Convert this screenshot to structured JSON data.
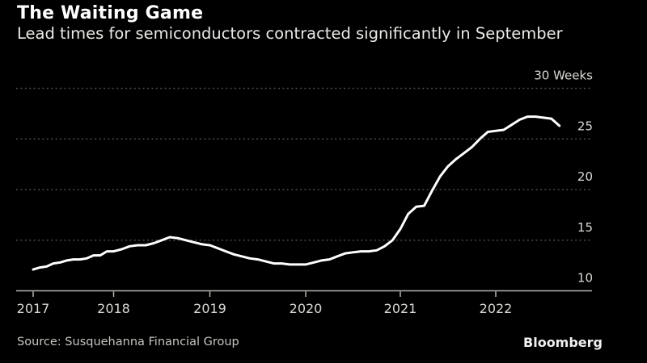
{
  "header": {
    "title": "The Waiting Game",
    "subtitle": "Lead times for semiconductors contracted significantly in September"
  },
  "footer": {
    "source_label": "Source: Susquehanna Financial Group",
    "brand": "Bloomberg"
  },
  "style": {
    "background": "#000000",
    "title_color": "#ffffff",
    "subtitle_color": "#e9e9e5",
    "axis_label_color": "#d9d9d4",
    "gridline_color": "#4b4b4b",
    "axis_line_color": "#b4b4ae",
    "source_color": "#c6c6c1",
    "line_color": "#ffffff"
  },
  "chart_data": {
    "type": "line",
    "title": "The Waiting Game",
    "subtitle": "Lead times for semiconductors contracted significantly in September",
    "ylabel": "Weeks",
    "ylim": [
      10,
      30
    ],
    "y_ticks": [
      10,
      15,
      20,
      25,
      30
    ],
    "y_tick_label_top": "30 Weeks",
    "x_ticks": [
      "2017",
      "2018",
      "2019",
      "2020",
      "2021",
      "2022"
    ],
    "grid": "horizontal-dotted",
    "legend": "none",
    "line_color": "#ffffff",
    "series": [
      {
        "name": "Semiconductor lead time",
        "unit": "weeks",
        "x": [
          "2017-01",
          "2017-02",
          "2017-03",
          "2017-04",
          "2017-05",
          "2017-06",
          "2017-07",
          "2017-08",
          "2017-09",
          "2017-10",
          "2017-11",
          "2017-12",
          "2018-01",
          "2018-02",
          "2018-03",
          "2018-04",
          "2018-05",
          "2018-06",
          "2018-07",
          "2018-08",
          "2018-09",
          "2018-10",
          "2018-11",
          "2018-12",
          "2019-01",
          "2019-02",
          "2019-03",
          "2019-04",
          "2019-05",
          "2019-06",
          "2019-07",
          "2019-08",
          "2019-09",
          "2019-10",
          "2019-11",
          "2019-12",
          "2020-01",
          "2020-02",
          "2020-03",
          "2020-04",
          "2020-05",
          "2020-06",
          "2020-07",
          "2020-08",
          "2020-09",
          "2020-10",
          "2020-11",
          "2020-12",
          "2021-01",
          "2021-02",
          "2021-03",
          "2021-04",
          "2021-05",
          "2021-06",
          "2021-07",
          "2021-08",
          "2021-09",
          "2021-10",
          "2021-11",
          "2021-12",
          "2022-01",
          "2022-02",
          "2022-03",
          "2022-04",
          "2022-05",
          "2022-06",
          "2022-07",
          "2022-08",
          "2022-09"
        ],
        "values": [
          12.1,
          12.3,
          12.4,
          12.7,
          12.8,
          13.0,
          13.1,
          13.1,
          13.2,
          13.5,
          13.5,
          13.9,
          13.9,
          14.1,
          14.4,
          14.5,
          14.5,
          14.7,
          15.0,
          15.3,
          15.2,
          15.0,
          14.8,
          14.6,
          14.5,
          14.2,
          13.9,
          13.6,
          13.4,
          13.2,
          13.1,
          12.9,
          12.7,
          12.7,
          12.6,
          12.6,
          12.6,
          12.8,
          13.0,
          13.1,
          13.4,
          13.7,
          13.8,
          13.9,
          13.9,
          14.0,
          14.4,
          15.0,
          16.1,
          17.6,
          18.3,
          18.4,
          19.9,
          21.3,
          22.3,
          23.0,
          23.6,
          24.2,
          25.0,
          25.7,
          25.8,
          25.9,
          26.4,
          26.9,
          27.2,
          27.2,
          27.1,
          27.0,
          26.3
        ]
      }
    ]
  }
}
